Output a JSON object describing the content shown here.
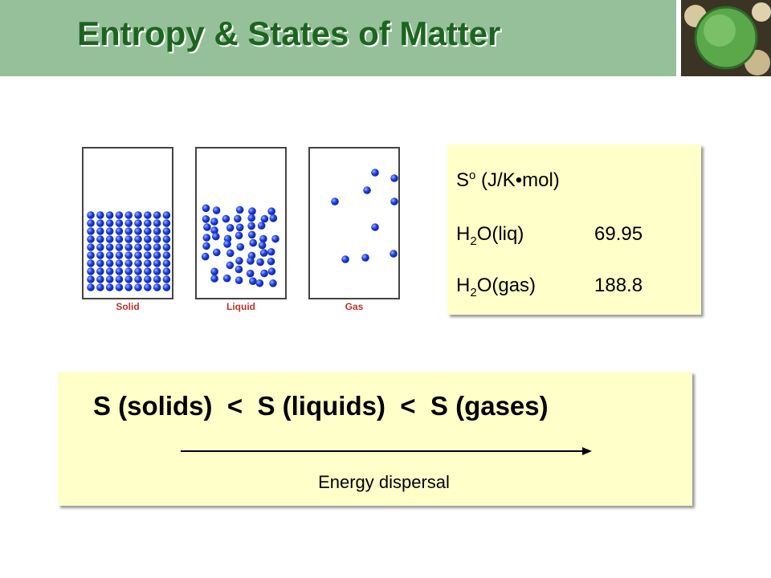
{
  "header": {
    "title": "Entropy & States of Matter"
  },
  "figure": {
    "labels": [
      "Solid",
      "Liquid",
      "Gas"
    ]
  },
  "table": {
    "header": {
      "symbol": "S",
      "superscript": "o",
      "unit": "(J/K•mol)"
    },
    "rows": [
      {
        "element": "H",
        "subscript": "2",
        "rest": "O(liq)",
        "value": 69.95
      },
      {
        "element": "H",
        "subscript": "2",
        "rest": "O(gas)",
        "value": 188.8
      }
    ]
  },
  "comparison": {
    "text": "S (solids)  <  S (liquids)  <  S (gases)",
    "arrow_label": "Energy dispersal"
  }
}
